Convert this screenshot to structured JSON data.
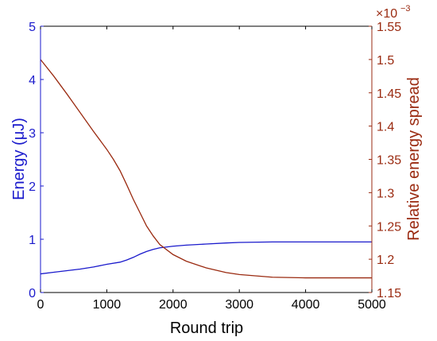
{
  "chart_data": {
    "type": "line",
    "xlabel": "Round trip",
    "xlim": [
      0,
      5000
    ],
    "xticks": [
      0,
      1000,
      2000,
      3000,
      4000,
      5000
    ],
    "y_left": {
      "label": "Energy (μJ)",
      "lim": [
        0,
        5
      ],
      "ticks": [
        0,
        1,
        2,
        3,
        4,
        5
      ],
      "color": "#1a1acc"
    },
    "y_right": {
      "label": "Relative energy spread",
      "lim": [
        1.15,
        1.55
      ],
      "ticks": [
        "1.15",
        "1.2",
        "1.25",
        "1.3",
        "1.35",
        "1.4",
        "1.45",
        "1.5",
        "1.55"
      ],
      "multiplier_base": "×10",
      "multiplier_exp": "−3",
      "color": "#9a2a10"
    },
    "series": [
      {
        "axis": "left",
        "color": "#1a1acc",
        "x": [
          0,
          200,
          400,
          600,
          800,
          1000,
          1200,
          1300,
          1400,
          1500,
          1600,
          1700,
          1800,
          2000,
          2200,
          2500,
          2800,
          3000,
          3500,
          4000,
          4500,
          5000
        ],
        "y": [
          0.35,
          0.38,
          0.41,
          0.44,
          0.48,
          0.53,
          0.57,
          0.61,
          0.66,
          0.72,
          0.77,
          0.81,
          0.84,
          0.87,
          0.89,
          0.91,
          0.93,
          0.94,
          0.95,
          0.95,
          0.95,
          0.95
        ]
      },
      {
        "axis": "right",
        "color": "#9a2a10",
        "x": [
          0,
          200,
          400,
          600,
          800,
          1000,
          1100,
          1200,
          1300,
          1400,
          1500,
          1600,
          1700,
          1800,
          2000,
          2200,
          2500,
          2800,
          3000,
          3500,
          4000,
          4500,
          5000
        ],
        "y": [
          1.5,
          1.475,
          1.448,
          1.42,
          1.392,
          1.365,
          1.35,
          1.333,
          1.312,
          1.29,
          1.27,
          1.25,
          1.235,
          1.222,
          1.207,
          1.197,
          1.187,
          1.18,
          1.177,
          1.173,
          1.172,
          1.172,
          1.172
        ]
      }
    ]
  }
}
